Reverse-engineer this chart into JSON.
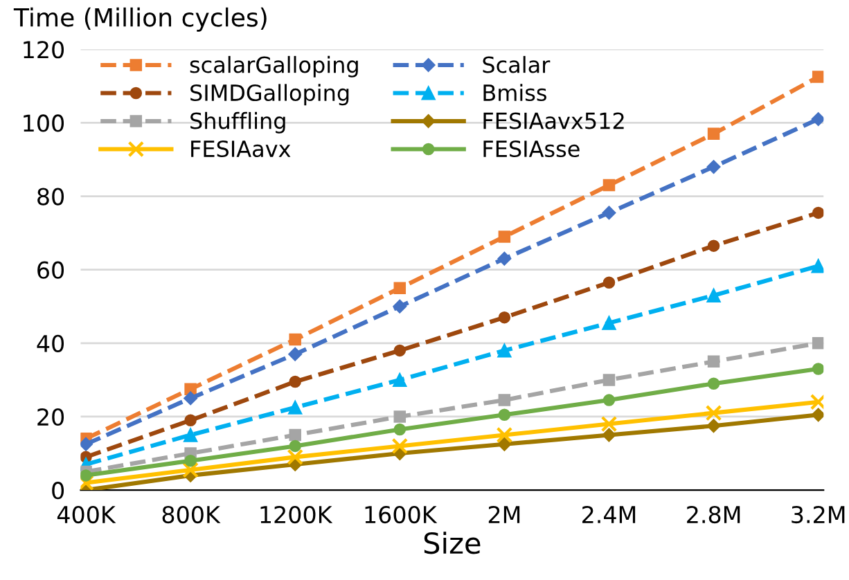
{
  "chart_data": {
    "type": "line",
    "ylabel": "Time (Million cycles)",
    "xlabel": "Size",
    "categories": [
      "400K",
      "800K",
      "1200K",
      "1600K",
      "2M",
      "2.4M",
      "2.8M",
      "3.2M"
    ],
    "ylim": [
      0,
      120
    ],
    "yticks": [
      0,
      20,
      40,
      60,
      80,
      100,
      120
    ],
    "grid": "y",
    "legend": "top left",
    "series": [
      {
        "name": "scalarGalloping",
        "color": "#ed7d31",
        "marker": "square",
        "line_style": "dashed",
        "values": [
          14,
          27.5,
          41,
          55,
          69,
          83,
          97,
          112.5
        ]
      },
      {
        "name": "Scalar",
        "color": "#4472c4",
        "marker": "diamond",
        "line_style": "dashed",
        "values": [
          12.5,
          25,
          37,
          50,
          63,
          75.5,
          88,
          101
        ]
      },
      {
        "name": "SIMDGalloping",
        "color": "#9e480e",
        "marker": "circle",
        "line_style": "dashed",
        "values": [
          9,
          19,
          29.5,
          38,
          47,
          56.5,
          66.5,
          75.5
        ]
      },
      {
        "name": "Bmiss",
        "color": "#00b0f0",
        "marker": "triangle",
        "line_style": "dashed",
        "values": [
          7,
          15,
          22.5,
          30,
          38,
          45.5,
          53,
          61
        ]
      },
      {
        "name": "Shuffling",
        "color": "#a5a5a5",
        "marker": "square",
        "line_style": "dashed",
        "values": [
          5,
          10,
          15,
          20,
          24.5,
          30,
          35,
          40
        ]
      },
      {
        "name": "FESIAavx512",
        "color": "#a07800",
        "marker": "diamond",
        "line_style": "solid",
        "values": [
          0,
          4,
          7,
          10,
          12.5,
          15,
          17.5,
          20.5
        ]
      },
      {
        "name": "FESIAavx",
        "color": "#ffc000",
        "marker": "cross",
        "line_style": "solid",
        "values": [
          2,
          5.5,
          9,
          12,
          15,
          18,
          21,
          24
        ]
      },
      {
        "name": "FESIAsse",
        "color": "#70ad47",
        "marker": "circle",
        "line_style": "solid",
        "values": [
          4,
          8,
          12,
          16.5,
          20.5,
          24.5,
          29,
          33
        ]
      }
    ]
  }
}
